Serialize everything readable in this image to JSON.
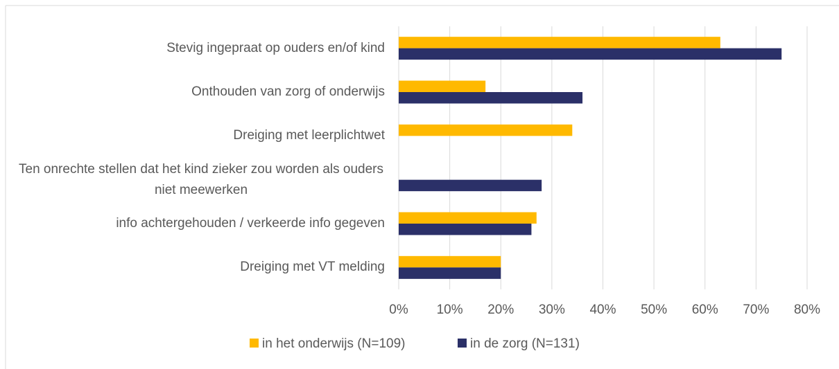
{
  "chart_data": {
    "type": "barh",
    "categories": [
      "Stevig ingepraat op ouders en/of kind",
      "Onthouden van zorg of onderwijs",
      "Dreiging met leerplichtwet",
      "Ten onrechte stellen dat het kind zieker zou worden als ouders niet meewerken",
      "info achtergehouden / verkeerde info gegeven",
      "Dreiging met VT melding"
    ],
    "series": [
      {
        "name": "in het onderwijs (N=109)",
        "color": "#ffb900",
        "values": [
          63,
          17,
          34,
          null,
          27,
          20
        ]
      },
      {
        "name": "in de zorg (N=131)",
        "color": "#2b3068",
        "values": [
          75,
          36,
          null,
          28,
          26,
          20
        ]
      }
    ],
    "xlim": [
      0,
      80
    ],
    "xticks": [
      {
        "value": 0,
        "label": "0%"
      },
      {
        "value": 10,
        "label": "10%"
      },
      {
        "value": 20,
        "label": "20%"
      },
      {
        "value": 30,
        "label": "30%"
      },
      {
        "value": 40,
        "label": "40%"
      },
      {
        "value": 50,
        "label": "50%"
      },
      {
        "value": 60,
        "label": "60%"
      },
      {
        "value": 70,
        "label": "70%"
      },
      {
        "value": 80,
        "label": "80%"
      }
    ],
    "grid": true,
    "legend": "bottom"
  }
}
